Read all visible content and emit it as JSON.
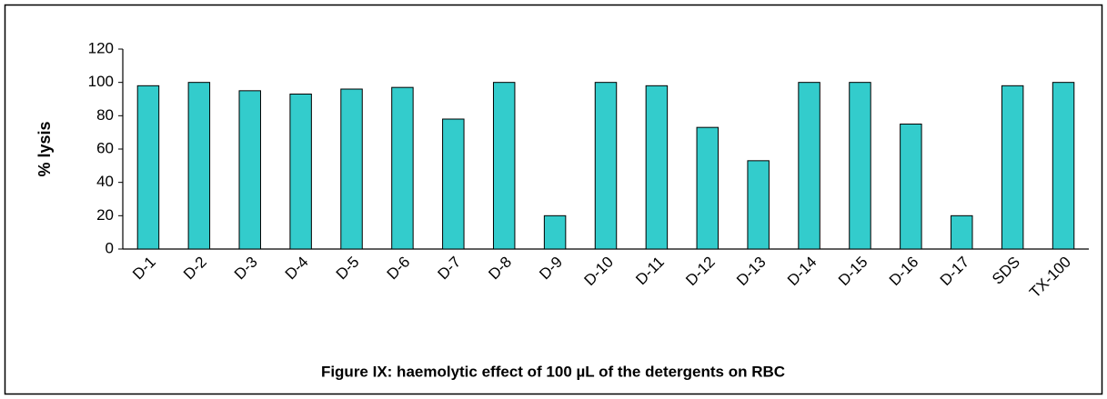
{
  "chart_data": {
    "type": "bar",
    "title": "Figure IX: haemolytic effect of 100 µL of the detergents on RBC",
    "y_label": "% lysis",
    "categories": [
      "D-1",
      "D-2",
      "D-3",
      "D-4",
      "D-5",
      "D-6",
      "D-7",
      "D-8",
      "D-9",
      "D-10",
      "D-11",
      "D-12",
      "D-13",
      "D-14",
      "D-15",
      "D-16",
      "D-17",
      "SDS",
      "TX-100"
    ],
    "values": [
      98,
      100,
      95,
      93,
      96,
      97,
      78,
      100,
      20,
      100,
      98,
      73,
      53,
      100,
      100,
      75,
      20,
      98,
      100
    ],
    "color": "#33cccc",
    "ylim": [
      0,
      120
    ],
    "yticks": [
      0,
      20,
      40,
      60,
      80,
      100,
      120
    ],
    "grid": false
  }
}
